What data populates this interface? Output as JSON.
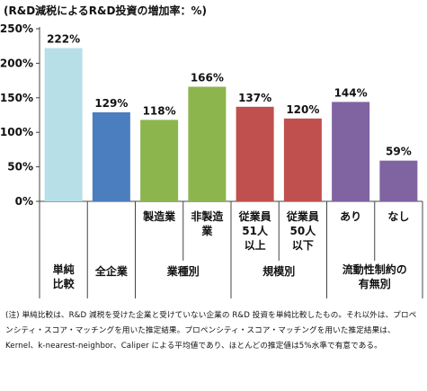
{
  "chart_data": {
    "type": "bar",
    "title": "(R&D減税によるR&D投資の増加率：%)",
    "ylim": [
      0,
      250
    ],
    "yticks": [
      0,
      50,
      100,
      150,
      200,
      250
    ],
    "ytick_labels": [
      "0%",
      "50%",
      "100%",
      "150%",
      "200%",
      "250%"
    ],
    "grid": false,
    "legend": "none",
    "bars": [
      {
        "category": "単純\n比較",
        "value": 222,
        "label": "222%",
        "color": "#b7dfe8"
      },
      {
        "category": "全企業",
        "value": 129,
        "label": "129%",
        "color": "#4a7ebf"
      },
      {
        "category": "製造業",
        "value": 118,
        "label": "118%",
        "color": "#8db54d"
      },
      {
        "category": "非製造\n業",
        "value": 166,
        "label": "166%",
        "color": "#8db54d"
      },
      {
        "category": "従業員\n51人\n以上",
        "value": 137,
        "label": "137%",
        "color": "#c0504d"
      },
      {
        "category": "従業員\n50人\n以下",
        "value": 120,
        "label": "120%",
        "color": "#c0504d"
      },
      {
        "category": "あり",
        "value": 144,
        "label": "144%",
        "color": "#8064a2"
      },
      {
        "category": "なし",
        "value": 59,
        "label": "59%",
        "color": "#8064a2"
      }
    ],
    "group_labels": [
      {
        "label": "単純\n比較",
        "bars": [
          0
        ]
      },
      {
        "label": "全企業",
        "bars": [
          1
        ]
      },
      {
        "label": "業種別",
        "bars": [
          2,
          3
        ]
      },
      {
        "label": "規模別",
        "bars": [
          4,
          5
        ]
      },
      {
        "label": "流動性制約の\n有無別",
        "bars": [
          6,
          7
        ]
      }
    ]
  },
  "note": {
    "prefix": "(注)",
    "text": "単純比較は、R&D 減税を受けた企業と受けていない企業の R&D 投資を単純比較したもの。それ以外は、プロペンシティ・スコア・マッチングを用いた推定結果。プロペンシティ・スコア・マッチングを用いた推定結果は、Kernel、k-nearest-neighbor、Caliper による平均値であり、ほとんどの推定値は5%水準で有意である。"
  }
}
